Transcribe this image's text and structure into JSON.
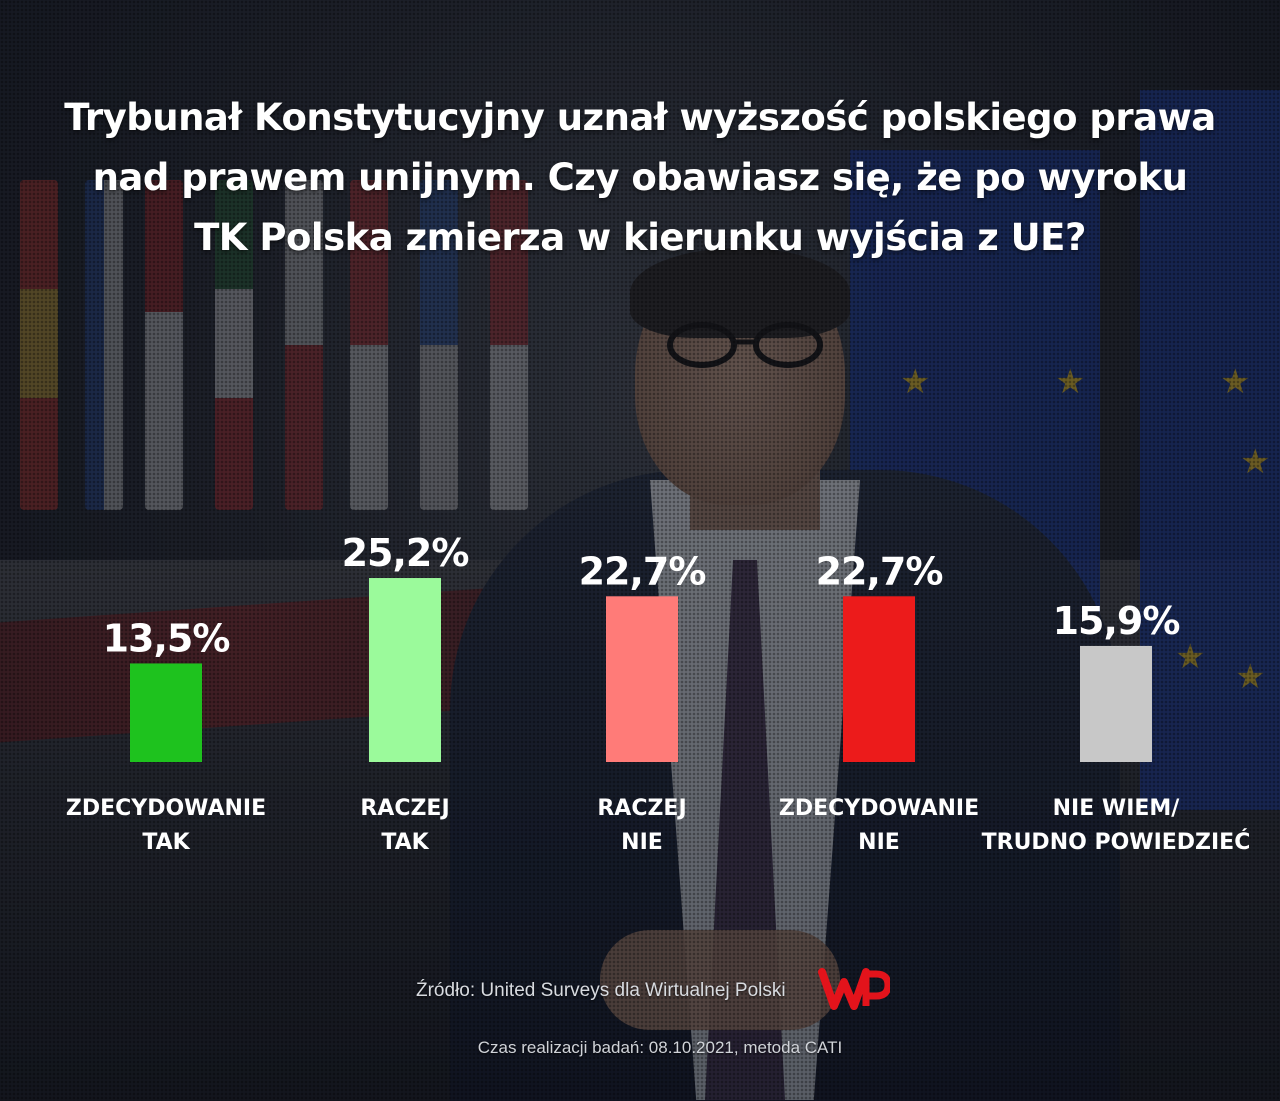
{
  "title": "Trybunał Konstytucyjny uznał wyższość polskiego prawa nad prawem unijnym. Czy obawiasz się, że po wyroku TK Polska zmierza w kierunku wyjścia z UE?",
  "chart_data": {
    "type": "bar",
    "title": "Trybunał Konstytucyjny uznał wyższość polskiego prawa nad prawem unijnym. Czy obawiasz się, że po wyroku TK Polska zmierza w kierunku wyjścia z UE?",
    "categories": [
      [
        "ZDECYDOWANIE",
        "TAK"
      ],
      [
        "RACZEJ",
        "TAK"
      ],
      [
        "RACZEJ",
        "NIE"
      ],
      [
        "ZDECYDOWANIE",
        "NIE"
      ],
      [
        "NIE WIEM/",
        "TRUDNO POWIEDZIEĆ"
      ]
    ],
    "values": [
      13.5,
      25.2,
      22.7,
      22.7,
      15.9
    ],
    "value_labels": [
      "13,5%",
      "25,2%",
      "22,7%",
      "22,7%",
      "15,9%"
    ],
    "colors": [
      "#1ec21e",
      "#9bfa9b",
      "#ff7b78",
      "#ec1b1b",
      "#c8c8c8"
    ],
    "xlabel": "",
    "ylabel": "",
    "grid": false,
    "legend": "none"
  },
  "footer": {
    "source": "Źródło: United Surveys dla Wirtualnej Polski",
    "note": "Czas realizacji badań: 08.10.2021, metoda CATI"
  },
  "logo": {
    "name": "wp-logo-icon",
    "color": "#e3131b"
  }
}
